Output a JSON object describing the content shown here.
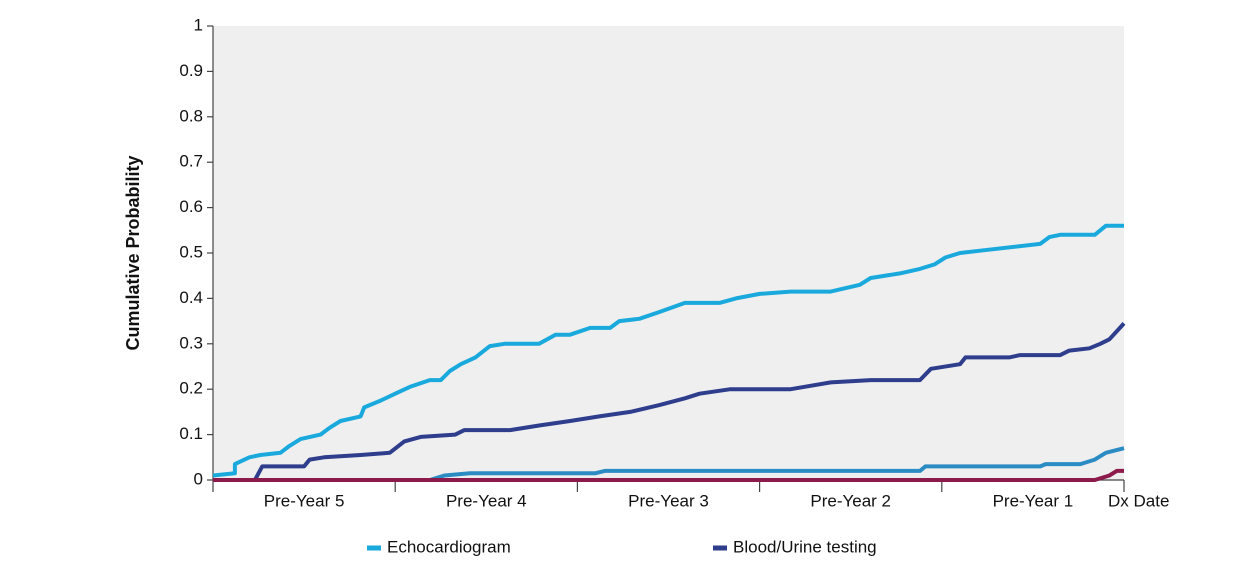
{
  "chart_data": {
    "type": "line",
    "y_label": "Cumulative Probability",
    "xlim": [
      -5,
      0
    ],
    "xtick_marks": [
      -5,
      -4,
      -3,
      -2,
      -1,
      0
    ],
    "xticks": [
      {
        "value": -4.5,
        "label": "Pre-Year 5"
      },
      {
        "value": -3.5,
        "label": "Pre-Year 4"
      },
      {
        "value": -2.5,
        "label": "Pre-Year 3"
      },
      {
        "value": -1.5,
        "label": "Pre-Year 2"
      },
      {
        "value": -0.5,
        "label": "Pre-Year 1"
      },
      {
        "value": 0,
        "label": "Dx Date"
      }
    ],
    "ylim": [
      0,
      1
    ],
    "yticks": [
      0,
      0.1,
      0.2,
      0.3,
      0.4,
      0.5,
      0.6,
      0.7,
      0.8,
      0.9,
      1
    ],
    "background": "#efefef",
    "series": [
      {
        "color": "#2b8cc4",
        "x": [
          -5,
          -3.81,
          -3.73,
          -3.59,
          -2.9,
          -2.85,
          -1.12,
          -1.09,
          -0.46,
          -0.43,
          -0.24,
          -0.16,
          -0.1,
          0
        ],
        "values": [
          0,
          0,
          0.01,
          0.015,
          0.015,
          0.02,
          0.02,
          0.03,
          0.03,
          0.035,
          0.035,
          0.045,
          0.06,
          0.07
        ]
      },
      {
        "name": "Echocardiogram",
        "color": "#1aa9dc",
        "x": [
          -5,
          -4.88,
          -4.88,
          -4.8,
          -4.74,
          -4.63,
          -4.58,
          -4.52,
          -4.41,
          -4.36,
          -4.3,
          -4.19,
          -4.17,
          -4.08,
          -4.0,
          -3.92,
          -3.81,
          -3.75,
          -3.7,
          -3.64,
          -3.56,
          -3.48,
          -3.4,
          -3.21,
          -3.12,
          -3.04,
          -2.93,
          -2.82,
          -2.77,
          -2.66,
          -2.55,
          -2.41,
          -2.22,
          -2.13,
          -2.0,
          -1.83,
          -1.61,
          -1.45,
          -1.39,
          -1.23,
          -1.12,
          -1.04,
          -0.98,
          -0.9,
          -0.79,
          -0.46,
          -0.41,
          -0.35,
          -0.16,
          -0.1,
          0
        ],
        "values": [
          0.01,
          0.015,
          0.035,
          0.05,
          0.055,
          0.06,
          0.075,
          0.09,
          0.1,
          0.115,
          0.13,
          0.14,
          0.16,
          0.175,
          0.19,
          0.205,
          0.22,
          0.22,
          0.24,
          0.255,
          0.27,
          0.295,
          0.3,
          0.3,
          0.32,
          0.32,
          0.335,
          0.335,
          0.35,
          0.355,
          0.37,
          0.39,
          0.39,
          0.4,
          0.41,
          0.415,
          0.415,
          0.43,
          0.445,
          0.455,
          0.465,
          0.475,
          0.49,
          0.5,
          0.505,
          0.52,
          0.535,
          0.54,
          0.54,
          0.56,
          0.56
        ]
      },
      {
        "name": "Blood/Urine testing",
        "color": "#2e3d8c",
        "x": [
          -5,
          -4.77,
          -4.73,
          -4.5,
          -4.47,
          -4.39,
          -4.19,
          -4.03,
          -3.95,
          -3.86,
          -3.67,
          -3.62,
          -3.37,
          -3.21,
          -3.04,
          -2.88,
          -2.71,
          -2.55,
          -2.41,
          -2.33,
          -2.16,
          -1.83,
          -1.61,
          -1.39,
          -1.12,
          -1.06,
          -0.9,
          -0.87,
          -0.63,
          -0.57,
          -0.35,
          -0.3,
          -0.19,
          -0.13,
          -0.08,
          0
        ],
        "values": [
          0,
          0,
          0.03,
          0.03,
          0.045,
          0.05,
          0.055,
          0.06,
          0.085,
          0.095,
          0.1,
          0.11,
          0.11,
          0.12,
          0.13,
          0.14,
          0.15,
          0.165,
          0.18,
          0.19,
          0.2,
          0.2,
          0.215,
          0.22,
          0.22,
          0.245,
          0.255,
          0.27,
          0.27,
          0.275,
          0.275,
          0.285,
          0.29,
          0.3,
          0.31,
          0.345
        ]
      },
      {
        "color": "#8c1a4b",
        "x": [
          -5,
          -0.16,
          -0.08,
          -0.04,
          0
        ],
        "values": [
          0,
          0,
          0.01,
          0.02,
          0.02
        ]
      }
    ]
  }
}
